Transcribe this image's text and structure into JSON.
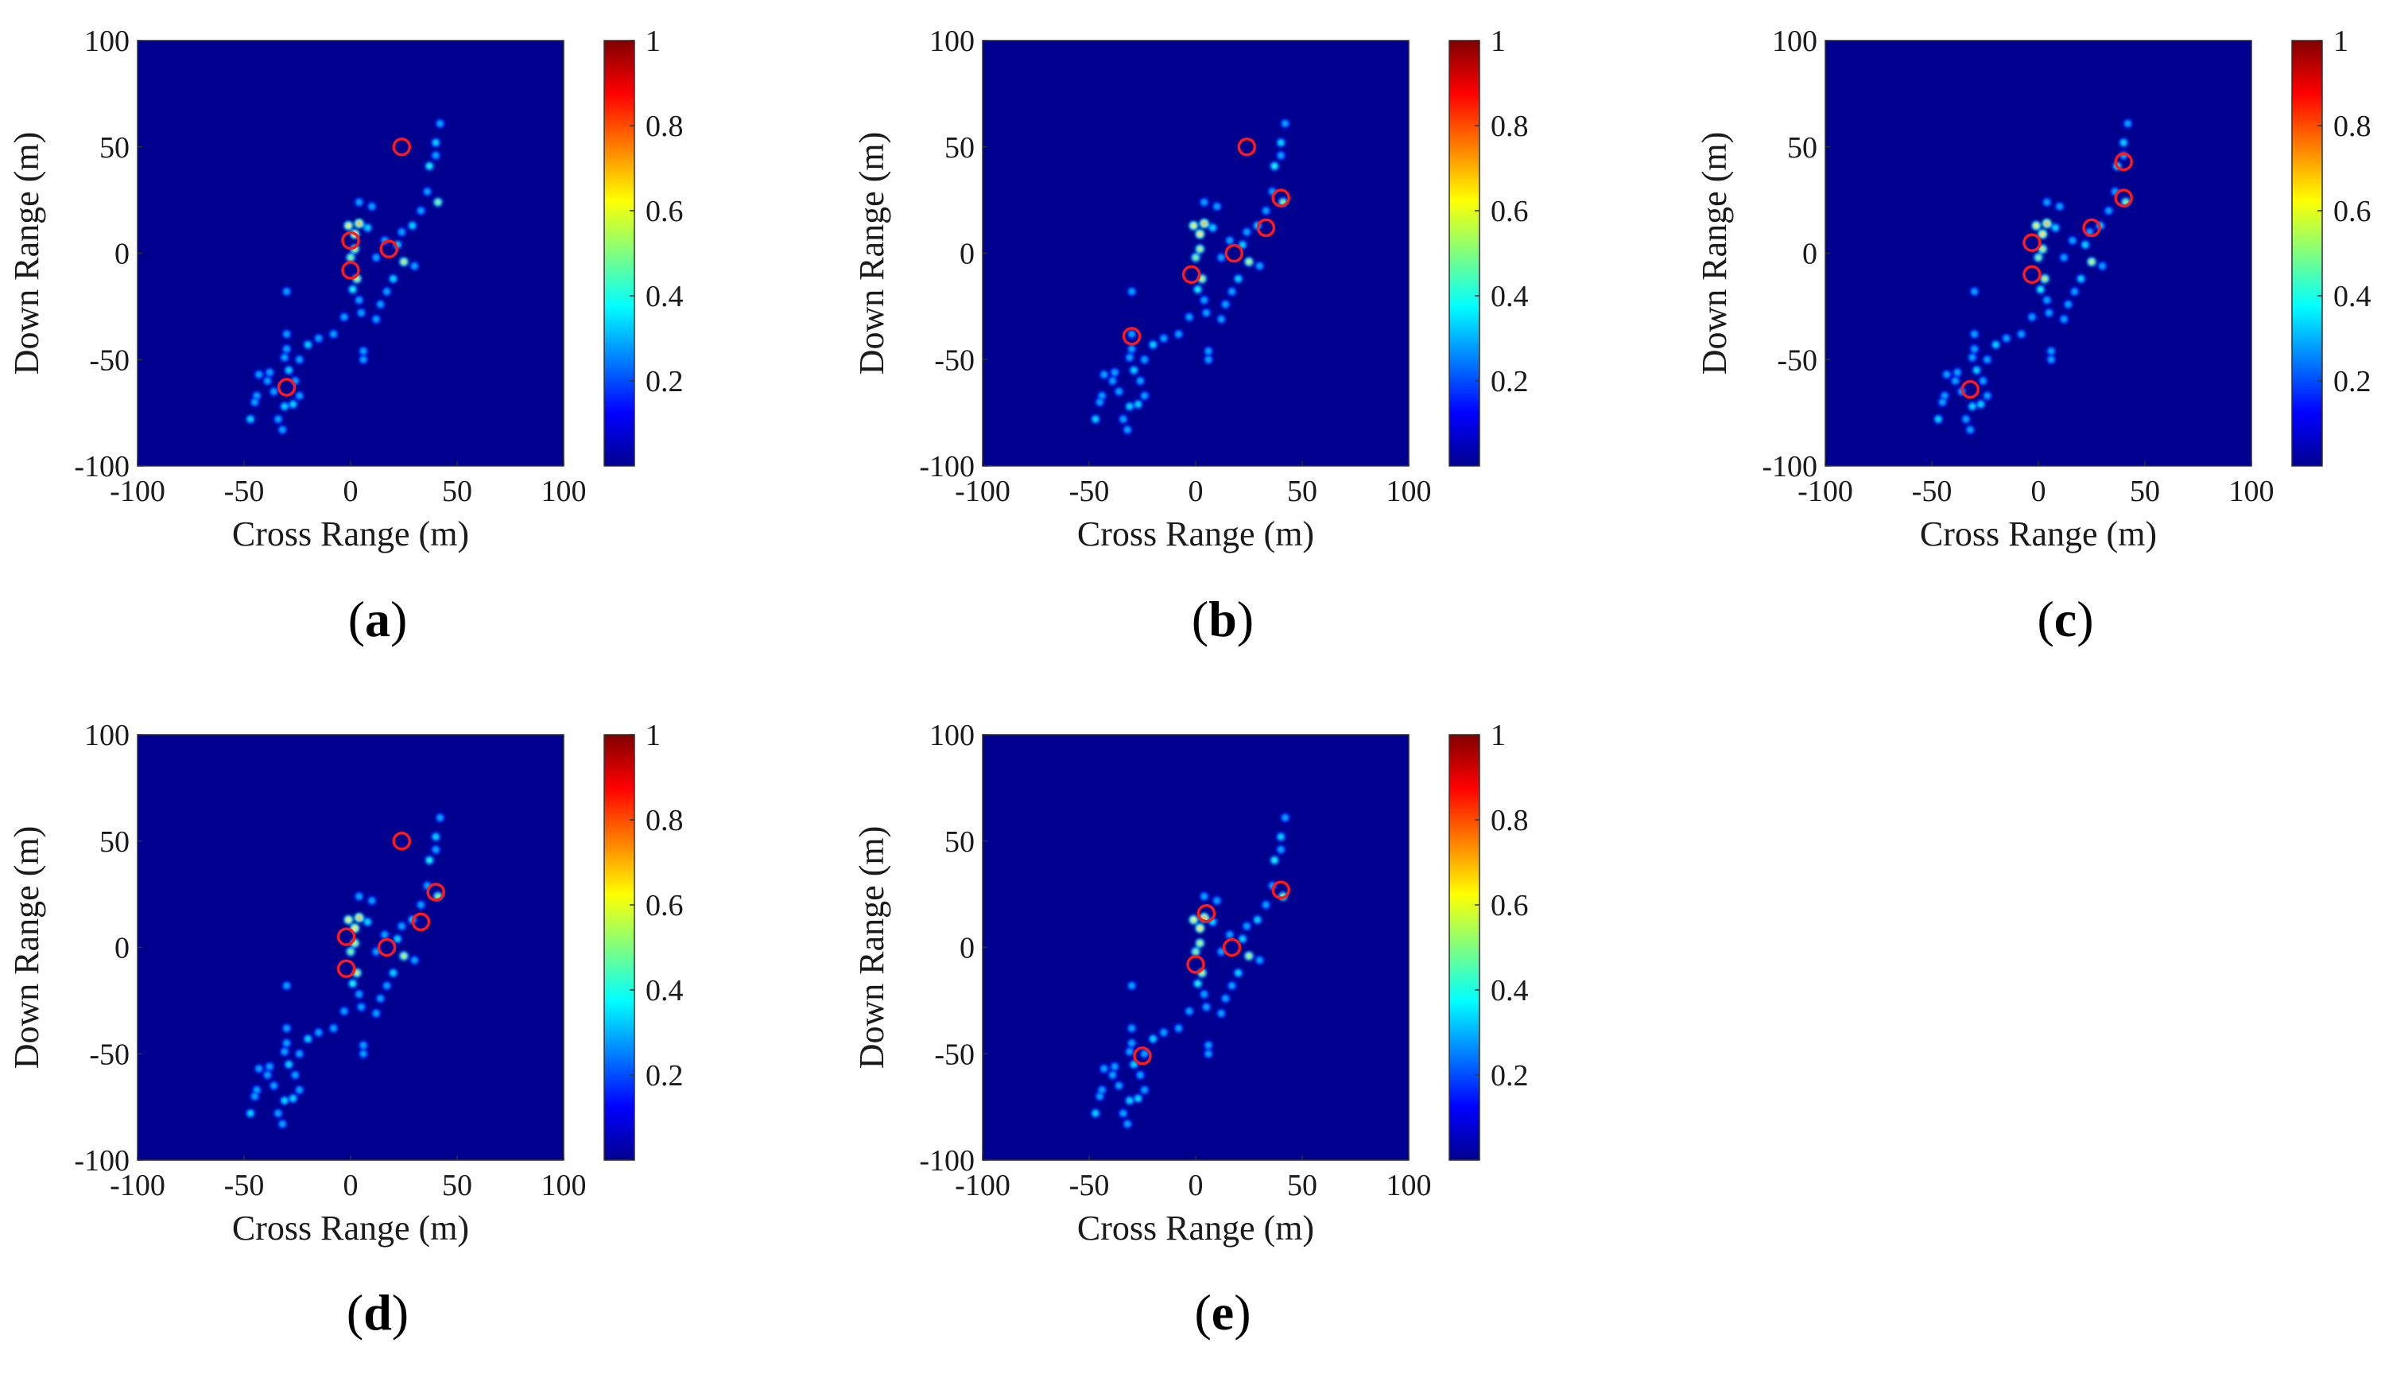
{
  "figure": {
    "panel_count": 5
  },
  "chart_data": [
    {
      "type": "heatmap",
      "panel_label": "a",
      "xlabel": "Cross Range (m)",
      "ylabel": "Down Range (m)",
      "xlim": [
        -100,
        100
      ],
      "ylim": [
        -100,
        100
      ],
      "xticks": [
        "-100",
        "-50",
        "0",
        "50",
        "100"
      ],
      "yticks": [
        "100",
        "50",
        "0",
        "-50",
        "-100"
      ],
      "colorbar": {
        "range": [
          0,
          1
        ],
        "ticks": [
          "1",
          "0.8",
          "0.6",
          "0.4",
          "0.2"
        ]
      },
      "circled_targets": [
        [
          24,
          50
        ],
        [
          0,
          6
        ],
        [
          0,
          -8
        ],
        [
          18,
          2
        ],
        [
          -30,
          -63
        ]
      ]
    },
    {
      "type": "heatmap",
      "panel_label": "b",
      "xlabel": "Cross Range (m)",
      "ylabel": "Down Range (m)",
      "xlim": [
        -100,
        100
      ],
      "ylim": [
        -100,
        100
      ],
      "xticks": [
        "-100",
        "-50",
        "0",
        "50",
        "100"
      ],
      "yticks": [
        "100",
        "50",
        "0",
        "-50",
        "-100"
      ],
      "colorbar": {
        "range": [
          0,
          1
        ],
        "ticks": [
          "1",
          "0.8",
          "0.6",
          "0.4",
          "0.2"
        ]
      },
      "circled_targets": [
        [
          24,
          50
        ],
        [
          40,
          26
        ],
        [
          33,
          12
        ],
        [
          18,
          0
        ],
        [
          -2,
          -10
        ],
        [
          -30,
          -39
        ]
      ]
    },
    {
      "type": "heatmap",
      "panel_label": "c",
      "xlabel": "Cross Range (m)",
      "ylabel": "Down Range (m)",
      "xlim": [
        -100,
        100
      ],
      "ylim": [
        -100,
        100
      ],
      "xticks": [
        "-100",
        "-50",
        "0",
        "50",
        "100"
      ],
      "yticks": [
        "100",
        "50",
        "0",
        "-50",
        "-100"
      ],
      "colorbar": {
        "range": [
          0,
          1
        ],
        "ticks": [
          "1",
          "0.8",
          "0.6",
          "0.4",
          "0.2"
        ]
      },
      "circled_targets": [
        [
          40,
          43
        ],
        [
          40,
          26
        ],
        [
          25,
          12
        ],
        [
          -3,
          5
        ],
        [
          -3,
          -10
        ],
        [
          -32,
          -64
        ]
      ]
    },
    {
      "type": "heatmap",
      "panel_label": "d",
      "xlabel": "Cross Range (m)",
      "ylabel": "Down Range (m)",
      "xlim": [
        -100,
        100
      ],
      "ylim": [
        -100,
        100
      ],
      "xticks": [
        "-100",
        "-50",
        "0",
        "50",
        "100"
      ],
      "yticks": [
        "100",
        "50",
        "0",
        "-50",
        "-100"
      ],
      "colorbar": {
        "range": [
          0,
          1
        ],
        "ticks": [
          "1",
          "0.8",
          "0.6",
          "0.4",
          "0.2"
        ]
      },
      "circled_targets": [
        [
          24,
          50
        ],
        [
          40,
          26
        ],
        [
          33,
          12
        ],
        [
          17,
          0
        ],
        [
          -2,
          5
        ],
        [
          -2,
          -10
        ]
      ]
    },
    {
      "type": "heatmap",
      "panel_label": "e",
      "xlabel": "Cross Range (m)",
      "ylabel": "Down Range (m)",
      "xlim": [
        -100,
        100
      ],
      "ylim": [
        -100,
        100
      ],
      "xticks": [
        "-100",
        "-50",
        "0",
        "50",
        "100"
      ],
      "yticks": [
        "100",
        "50",
        "0",
        "-50",
        "-100"
      ],
      "colorbar": {
        "range": [
          0,
          1
        ],
        "ticks": [
          "1",
          "0.8",
          "0.6",
          "0.4",
          "0.2"
        ]
      },
      "circled_targets": [
        [
          40,
          27
        ],
        [
          5,
          16
        ],
        [
          17,
          0
        ],
        [
          0,
          -8
        ],
        [
          -25,
          -51
        ]
      ]
    }
  ],
  "scatterers": [
    [
      42,
      61,
      0.3
    ],
    [
      40,
      52,
      0.35
    ],
    [
      40,
      46,
      0.3
    ],
    [
      37,
      41,
      0.4
    ],
    [
      41,
      24,
      0.5
    ],
    [
      36,
      29,
      0.3
    ],
    [
      33,
      20,
      0.3
    ],
    [
      29,
      13,
      0.35
    ],
    [
      24,
      10,
      0.3
    ],
    [
      22,
      4,
      0.35
    ],
    [
      25,
      -4,
      0.55
    ],
    [
      20,
      -12,
      0.35
    ],
    [
      17,
      -18,
      0.3
    ],
    [
      14,
      -24,
      0.3
    ],
    [
      12,
      -31,
      0.3
    ],
    [
      16,
      6,
      0.3
    ],
    [
      8,
      12,
      0.35
    ],
    [
      4,
      24,
      0.3
    ],
    [
      4,
      14,
      0.7
    ],
    [
      2,
      9,
      0.65
    ],
    [
      -1,
      13,
      0.6
    ],
    [
      2,
      2,
      0.55
    ],
    [
      0,
      -2,
      0.5
    ],
    [
      3,
      -12,
      0.55
    ],
    [
      1,
      -17,
      0.4
    ],
    [
      4,
      -22,
      0.3
    ],
    [
      5,
      -28,
      0.3
    ],
    [
      6,
      -46,
      0.3
    ],
    [
      6,
      -50,
      0.3
    ],
    [
      -3,
      -30,
      0.3
    ],
    [
      -8,
      -38,
      0.3
    ],
    [
      -15,
      -40,
      0.3
    ],
    [
      -20,
      -43,
      0.35
    ],
    [
      -24,
      -50,
      0.3
    ],
    [
      -30,
      -18,
      0.3
    ],
    [
      -30,
      -38,
      0.3
    ],
    [
      -30,
      -45,
      0.3
    ],
    [
      -31,
      -49,
      0.3
    ],
    [
      -29,
      -55,
      0.35
    ],
    [
      -26,
      -60,
      0.3
    ],
    [
      -24,
      -67,
      0.3
    ],
    [
      -27,
      -71,
      0.35
    ],
    [
      -31,
      -72,
      0.35
    ],
    [
      -34,
      -78,
      0.3
    ],
    [
      -32,
      -83,
      0.3
    ],
    [
      -36,
      -65,
      0.3
    ],
    [
      -39,
      -60,
      0.3
    ],
    [
      -43,
      -57,
      0.3
    ],
    [
      -44,
      -67,
      0.3
    ],
    [
      -45,
      -70,
      0.3
    ],
    [
      -47,
      -78,
      0.35
    ],
    [
      -38,
      -56,
      0.3
    ],
    [
      30,
      -6,
      0.3
    ],
    [
      12,
      -2,
      0.3
    ],
    [
      10,
      22,
      0.3
    ]
  ]
}
